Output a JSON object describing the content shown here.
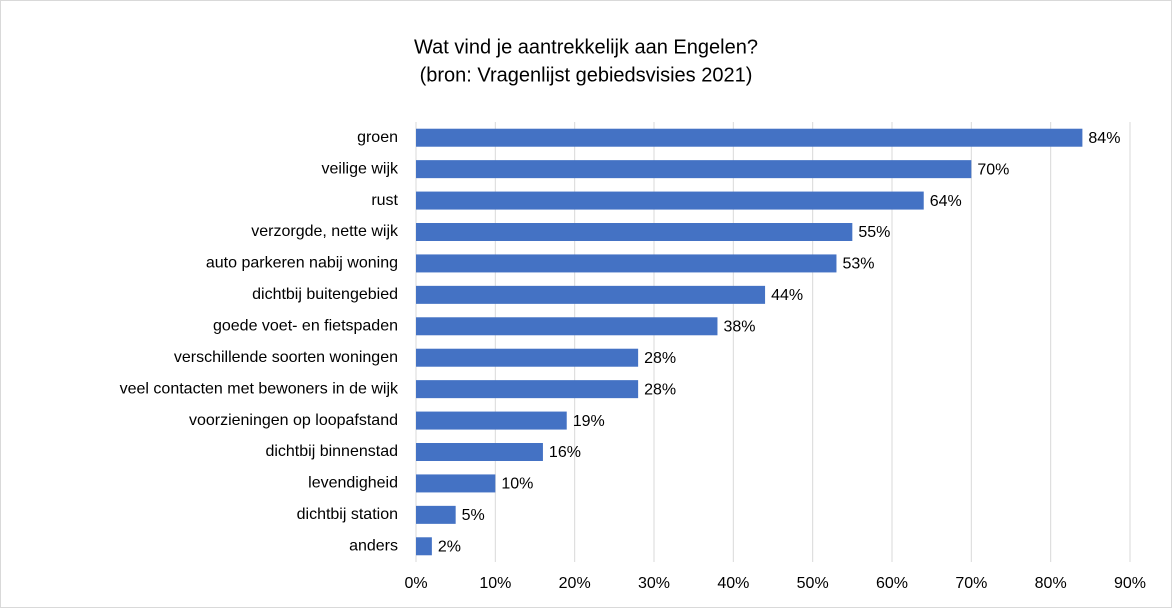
{
  "chart_data": {
    "type": "bar",
    "orientation": "horizontal",
    "title": "Wat vind je aantrekkelijk aan Engelen?",
    "subtitle": "(bron: Vragenlijst gebiedsvisies 2021)",
    "categories": [
      "groen",
      "veilige wijk",
      "rust",
      "verzorgde, nette wijk",
      "auto parkeren nabij woning",
      "dichtbij buitengebied",
      "goede voet- en fietspaden",
      "verschillende soorten woningen",
      "veel contacten met bewoners in de wijk",
      "voorzieningen op loopafstand",
      "dichtbij binnenstad",
      "levendigheid",
      "dichtbij station",
      "anders"
    ],
    "values": [
      84,
      70,
      64,
      55,
      53,
      44,
      38,
      28,
      28,
      19,
      16,
      10,
      5,
      2
    ],
    "value_labels": [
      "84%",
      "70%",
      "64%",
      "55%",
      "53%",
      "44%",
      "38%",
      "28%",
      "28%",
      "19%",
      "16%",
      "10%",
      "5%",
      "2%"
    ],
    "color": "#4472c4",
    "xlim": [
      0,
      90
    ],
    "xticks": [
      {
        "value": 0,
        "label": "0%"
      },
      {
        "value": 10,
        "label": "10%"
      },
      {
        "value": 20,
        "label": "20%"
      },
      {
        "value": 30,
        "label": "30%"
      },
      {
        "value": 40,
        "label": "40%"
      },
      {
        "value": 50,
        "label": "50%"
      },
      {
        "value": 60,
        "label": "60%"
      },
      {
        "value": 70,
        "label": "70%"
      },
      {
        "value": 80,
        "label": "80%"
      },
      {
        "value": 90,
        "label": "90%"
      }
    ],
    "grid": true
  }
}
